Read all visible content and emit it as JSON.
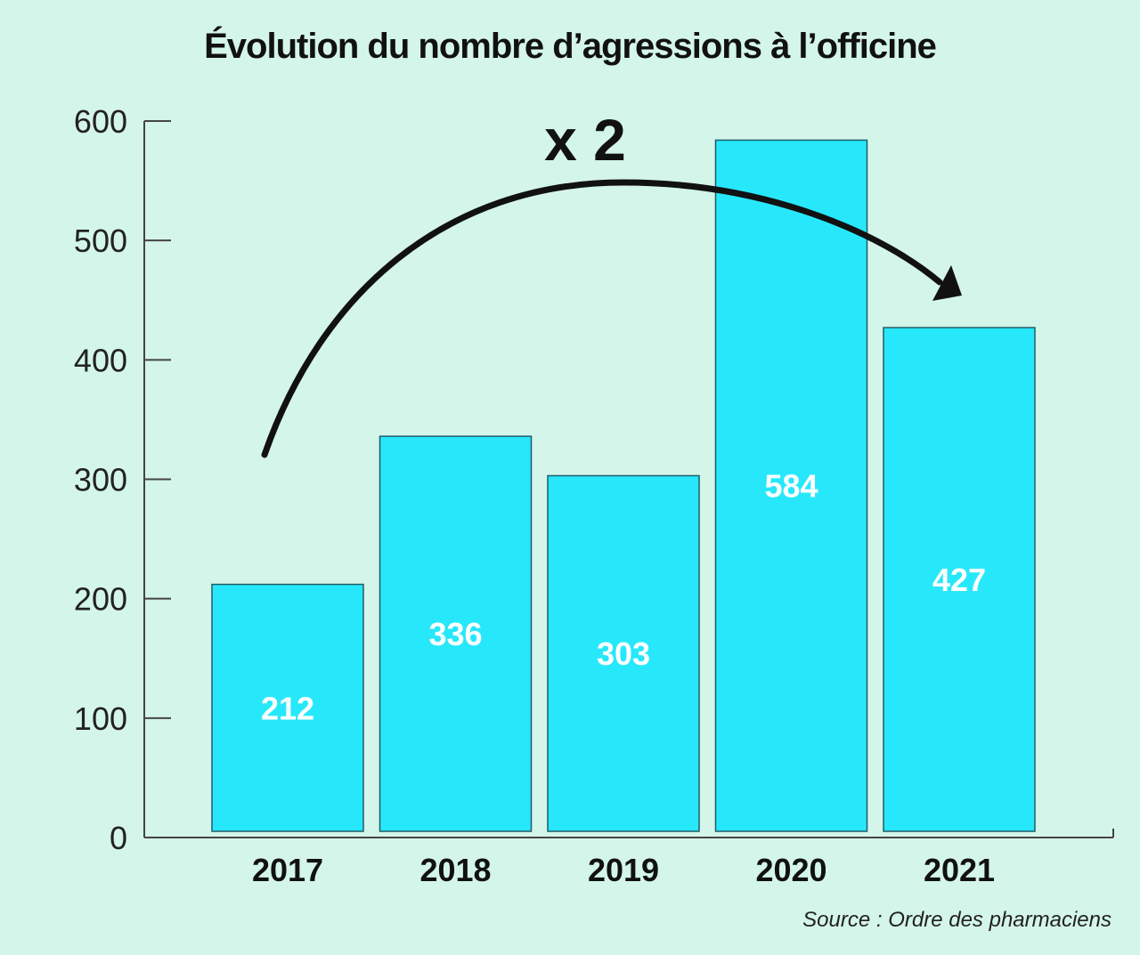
{
  "chart_data": {
    "type": "bar",
    "title": "Évolution du nombre d’agressions à l’officine",
    "categories": [
      "2017",
      "2018",
      "2019",
      "2020",
      "2021"
    ],
    "values": [
      212,
      336,
      303,
      584,
      427
    ],
    "data_labels": [
      "212",
      "336",
      "303",
      "584",
      "427"
    ],
    "ylim": [
      0,
      600
    ],
    "yticks": [
      0,
      100,
      200,
      300,
      400,
      500,
      600
    ],
    "xlabel": "",
    "ylabel": "",
    "grid": false,
    "legend": "none",
    "annotation": "x 2",
    "source": "Source : Ordre des pharmaciens",
    "colors": {
      "background": "#d4f5e9",
      "bar_fill": "#27e8fb",
      "bar_stroke": "#1f5c6b",
      "axis": "#444444",
      "bar_label": "#ffffff",
      "text": "#111111"
    }
  }
}
